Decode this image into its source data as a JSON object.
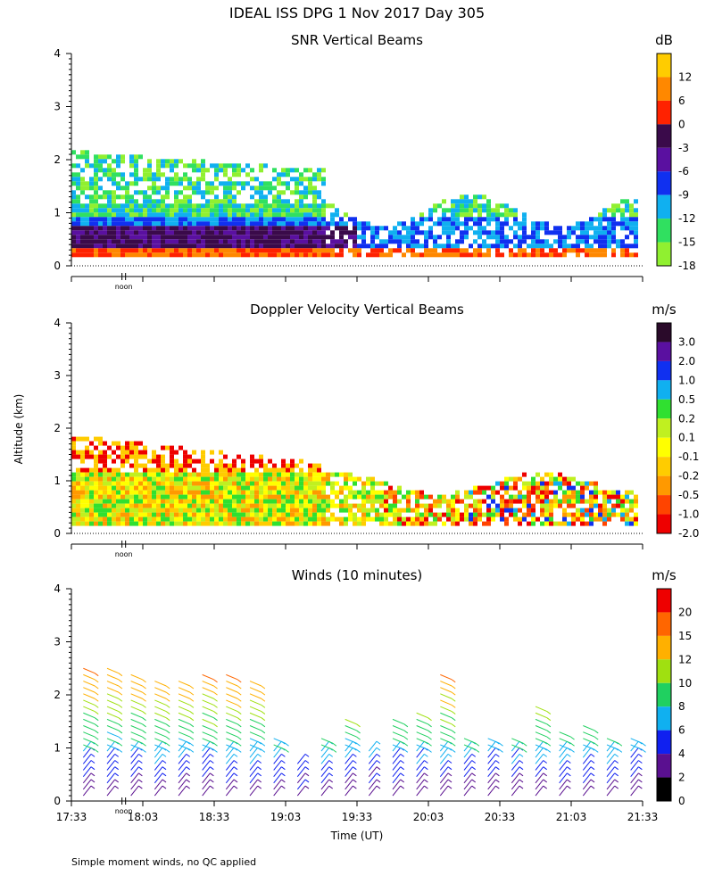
{
  "figure_title": "IDEAL ISS DPG    1 Nov 2017 Day 305",
  "ylabel": "Altitude (km)",
  "xlabel": "Time (UT)",
  "noon_label": "noon",
  "footnote": "Simple moment winds, no QC applied",
  "chart_data": [
    {
      "type": "heatmap",
      "title": "SNR Vertical Beams",
      "ylim": [
        0,
        4
      ],
      "yticks": [
        0,
        1,
        2,
        3,
        4
      ],
      "xlim_minutes_after_1733": [
        0,
        240
      ],
      "xticks_minutes": [
        0,
        30,
        60,
        90,
        120,
        150,
        180,
        210,
        240
      ],
      "colorbar": {
        "units": "dB",
        "labels": [
          "12",
          "6",
          "0",
          "-3",
          "-6",
          "-9",
          "-12",
          "-15",
          "-18"
        ],
        "colors": [
          "#ffcc00",
          "#ff8800",
          "#ff2200",
          "#3a0a4a",
          "#5a10a0",
          "#1030f0",
          "#10b0f0",
          "#30e060",
          "#90f030"
        ],
        "top_color": "#ffcc00"
      },
      "data_extent": {
        "time_start_min": 0,
        "time_end_min": 237,
        "altitude_min_km": 0.2
      }
    },
    {
      "type": "heatmap",
      "title": "Doppler Velocity Vertical Beams",
      "ylim": [
        0,
        4
      ],
      "yticks": [
        0,
        1,
        2,
        3,
        4
      ],
      "xlim_minutes_after_1733": [
        0,
        240
      ],
      "xticks_minutes": [
        0,
        30,
        60,
        90,
        120,
        150,
        180,
        210,
        240
      ],
      "colorbar": {
        "units": "m/s",
        "labels": [
          "3.0",
          "2.0",
          "1.0",
          "0.5",
          "0.2",
          "0.1",
          "-0.1",
          "-0.2",
          "-0.5",
          "-1.0",
          "-2.0"
        ],
        "colors": [
          "#2a0a2a",
          "#5a10a0",
          "#1030f0",
          "#10b0f0",
          "#30e030",
          "#c0f020",
          "#ffff00",
          "#ffcc00",
          "#ff9900",
          "#ff4400",
          "#ee0000"
        ]
      },
      "data_extent": {
        "time_start_min": 0,
        "time_end_min": 237,
        "altitude_min_km": 0.2
      }
    },
    {
      "type": "wind_barbs",
      "title": "Winds (10 minutes)",
      "ylim": [
        0,
        4
      ],
      "yticks": [
        0,
        1,
        2,
        3,
        4
      ],
      "xlim_minutes_after_1733": [
        0,
        240
      ],
      "xticks_minutes": [
        0,
        30,
        60,
        90,
        120,
        150,
        180,
        210,
        240
      ],
      "xtick_labels": [
        "17:33",
        "18:03",
        "18:33",
        "19:03",
        "19:33",
        "20:03",
        "20:33",
        "21:03",
        "21:33"
      ],
      "colorbar": {
        "units": "m/s",
        "labels": [
          "20",
          "15",
          "12",
          "10",
          "8",
          "6",
          "4",
          "2",
          "0"
        ],
        "colors": [
          "#ee0000",
          "#ff6600",
          "#ffb000",
          "#a0e010",
          "#20d060",
          "#10b0f0",
          "#1020f0",
          "#5a1090",
          "#000000"
        ]
      },
      "profile_times_min": [
        5,
        15,
        25,
        35,
        45,
        55,
        65,
        75,
        85,
        95,
        105,
        115,
        125,
        135,
        145,
        155,
        165,
        175,
        185,
        195,
        205,
        215,
        225,
        235
      ],
      "profile_top_km": [
        2.6,
        2.55,
        2.4,
        2.3,
        2.3,
        2.4,
        2.4,
        2.3,
        1.2,
        0.8,
        1.2,
        1.6,
        1.0,
        1.6,
        1.7,
        2.4,
        1.2,
        1.25,
        1.3,
        1.8,
        1.4,
        1.5,
        1.3,
        1.2
      ]
    }
  ]
}
